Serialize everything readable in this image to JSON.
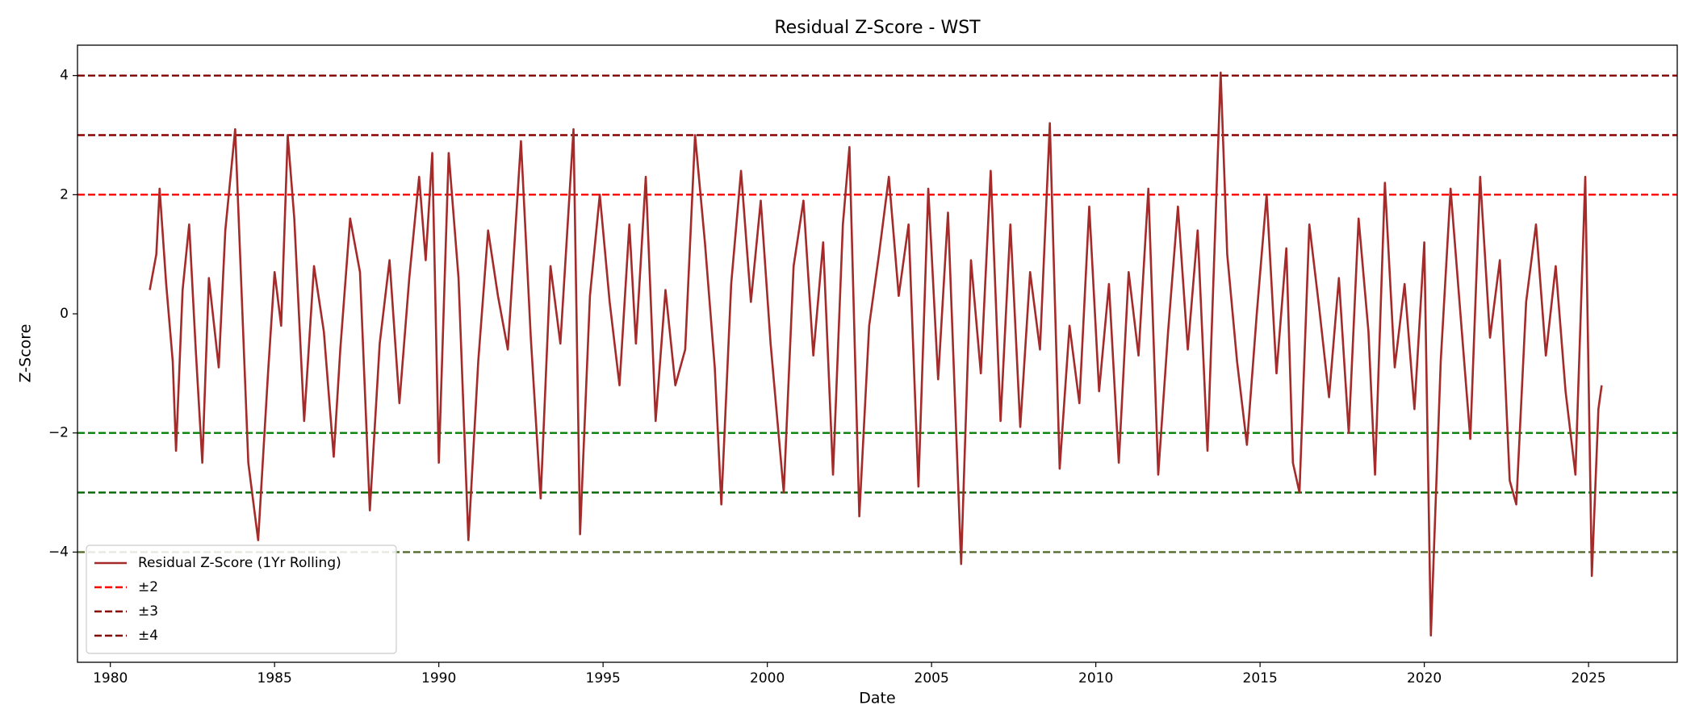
{
  "chart_data": {
    "type": "line",
    "title": "Residual Z-Score - WST",
    "x_label": "Date",
    "y_label": "Z-Score",
    "x": [
      1981.2,
      1981.4,
      1981.5,
      1981.7,
      1981.9,
      1982.0,
      1982.2,
      1982.4,
      1982.6,
      1982.8,
      1983.0,
      1983.3,
      1983.5,
      1983.8,
      1984.0,
      1984.2,
      1984.5,
      1984.8,
      1985.0,
      1985.2,
      1985.4,
      1985.6,
      1985.9,
      1986.2,
      1986.5,
      1986.8,
      1987.0,
      1987.3,
      1987.6,
      1987.9,
      1988.2,
      1988.5,
      1988.8,
      1989.1,
      1989.4,
      1989.6,
      1989.8,
      1990.0,
      1990.3,
      1990.6,
      1990.9,
      1991.2,
      1991.5,
      1991.8,
      1992.1,
      1992.5,
      1992.8,
      1993.1,
      1993.4,
      1993.7,
      1994.1,
      1994.3,
      1994.6,
      1994.9,
      1995.2,
      1995.5,
      1995.8,
      1996.0,
      1996.3,
      1996.6,
      1996.9,
      1997.2,
      1997.5,
      1997.8,
      1998.1,
      1998.4,
      1998.6,
      1998.9,
      1999.2,
      1999.5,
      1999.8,
      2000.1,
      2000.5,
      2000.8,
      2001.1,
      2001.4,
      2001.7,
      2002.0,
      2002.3,
      2002.5,
      2002.8,
      2003.1,
      2003.4,
      2003.7,
      2004.0,
      2004.3,
      2004.6,
      2004.9,
      2005.2,
      2005.5,
      2005.9,
      2006.2,
      2006.5,
      2006.8,
      2007.1,
      2007.4,
      2007.7,
      2008.0,
      2008.3,
      2008.6,
      2008.9,
      2009.2,
      2009.5,
      2009.8,
      2010.1,
      2010.4,
      2010.7,
      2011.0,
      2011.3,
      2011.6,
      2011.9,
      2012.2,
      2012.5,
      2012.8,
      2013.1,
      2013.4,
      2013.8,
      2014.0,
      2014.3,
      2014.6,
      2014.9,
      2015.2,
      2015.5,
      2015.8,
      2016.0,
      2016.2,
      2016.5,
      2016.8,
      2017.1,
      2017.4,
      2017.7,
      2018.0,
      2018.3,
      2018.5,
      2018.8,
      2019.1,
      2019.4,
      2019.7,
      2020.0,
      2020.2,
      2020.5,
      2020.8,
      2021.1,
      2021.4,
      2021.7,
      2022.0,
      2022.3,
      2022.6,
      2022.8,
      2023.1,
      2023.4,
      2023.7,
      2024.0,
      2024.3,
      2024.6,
      2024.9,
      2025.1,
      2025.3,
      2025.4
    ],
    "series": [
      {
        "name": "Residual Z-Score (1Yr Rolling)",
        "color": "#a52a2a",
        "values": [
          0.4,
          1.0,
          2.1,
          0.5,
          -0.8,
          -2.3,
          0.4,
          1.5,
          -0.6,
          -2.5,
          0.6,
          -0.9,
          1.4,
          3.1,
          0.3,
          -2.5,
          -3.8,
          -1.0,
          0.7,
          -0.2,
          3.0,
          1.6,
          -1.8,
          0.8,
          -0.3,
          -2.4,
          -0.6,
          1.6,
          0.7,
          -3.3,
          -0.5,
          0.9,
          -1.5,
          0.6,
          2.3,
          0.9,
          2.7,
          -2.5,
          2.7,
          0.6,
          -3.8,
          -0.8,
          1.4,
          0.3,
          -0.6,
          2.9,
          -0.4,
          -3.1,
          0.8,
          -0.5,
          3.1,
          -3.7,
          0.3,
          2.0,
          0.2,
          -1.2,
          1.5,
          -0.5,
          2.3,
          -1.8,
          0.4,
          -1.2,
          -0.6,
          3.0,
          1.2,
          -0.9,
          -3.2,
          0.5,
          2.4,
          0.2,
          1.9,
          -0.5,
          -3.0,
          0.8,
          1.9,
          -0.7,
          1.2,
          -2.7,
          1.5,
          2.8,
          -3.4,
          -0.2,
          1.0,
          2.3,
          0.3,
          1.5,
          -2.9,
          2.1,
          -1.1,
          1.7,
          -4.2,
          0.9,
          -1.0,
          2.4,
          -1.8,
          1.5,
          -1.9,
          0.7,
          -0.6,
          3.2,
          -2.6,
          -0.2,
          -1.5,
          1.8,
          -1.3,
          0.5,
          -2.5,
          0.7,
          -0.7,
          2.1,
          -2.7,
          -0.3,
          1.8,
          -0.6,
          1.4,
          -2.3,
          4.05,
          1.0,
          -0.8,
          -2.2,
          0.0,
          2.0,
          -1.0,
          1.1,
          -2.5,
          -3.0,
          1.5,
          0.1,
          -1.4,
          0.6,
          -2.0,
          1.6,
          -0.3,
          -2.7,
          2.2,
          -0.9,
          0.5,
          -1.6,
          1.2,
          -5.4,
          -0.8,
          2.1,
          0.0,
          -2.1,
          2.3,
          -0.4,
          0.9,
          -2.8,
          -3.2,
          0.2,
          1.5,
          -0.7,
          0.8,
          -1.3,
          -2.7,
          2.3,
          -4.4,
          -1.6,
          -1.2
        ]
      }
    ],
    "hlines": [
      {
        "name": "±2",
        "values": [
          2,
          -2
        ],
        "colors": [
          "#ff0000",
          "#008000"
        ]
      },
      {
        "name": "±3",
        "values": [
          3,
          -3
        ],
        "colors": [
          "#8b0000",
          "#006400"
        ]
      },
      {
        "name": "±4",
        "values": [
          4,
          -4
        ],
        "colors": [
          "#800000",
          "#556b2f"
        ]
      }
    ],
    "xlim": [
      1979.0,
      2027.7
    ],
    "xticks": [
      1980,
      1985,
      1990,
      1995,
      2000,
      2005,
      2010,
      2015,
      2020,
      2025
    ],
    "ylim": [
      -5.85,
      4.51
    ],
    "yticks": [
      {
        "value": -4,
        "label": "−4"
      },
      {
        "value": -2,
        "label": "−2"
      },
      0,
      2,
      4
    ],
    "grid": false,
    "legend": "lower left"
  }
}
